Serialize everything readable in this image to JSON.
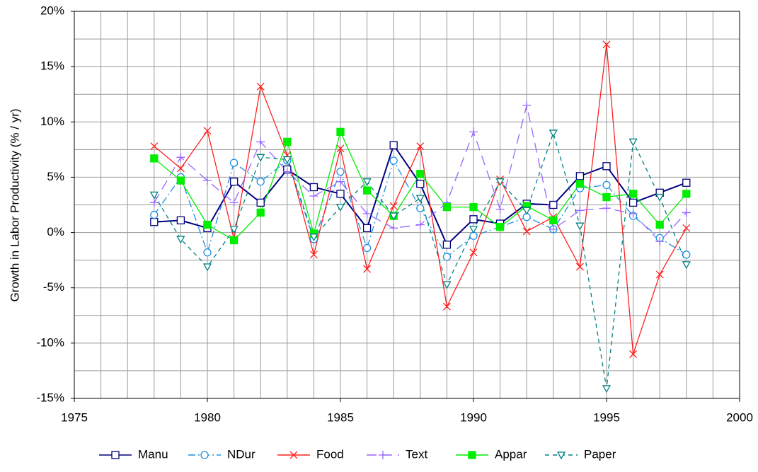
{
  "chart_data": {
    "type": "line",
    "y_label": "Growth in Labor Productivity (% / yr)",
    "x": [
      1978,
      1979,
      1980,
      1981,
      1982,
      1983,
      1984,
      1985,
      1986,
      1987,
      1988,
      1989,
      1990,
      1991,
      1992,
      1993,
      1994,
      1995,
      1996,
      1997,
      1998
    ],
    "xlim": [
      1975,
      2000
    ],
    "xticks": [
      1975,
      1980,
      1985,
      1990,
      1995,
      2000
    ],
    "xgrid": [
      1975,
      1976,
      1977,
      1978,
      1979,
      1980,
      1981,
      1982,
      1983,
      1984,
      1985,
      1986,
      1987,
      1988,
      1989,
      1990,
      1991,
      1992,
      1993,
      1994,
      1995,
      1996,
      1997,
      1998,
      1999,
      2000
    ],
    "ylim": [
      -15,
      20
    ],
    "yticks": [
      {
        "value": -15,
        "label": "-15%"
      },
      {
        "value": -10,
        "label": "-10%"
      },
      {
        "value": -5,
        "label": "-5%"
      },
      {
        "value": 0,
        "label": "0%"
      },
      {
        "value": 5,
        "label": "5%"
      },
      {
        "value": 10,
        "label": "10%"
      },
      {
        "value": 15,
        "label": "15%"
      },
      {
        "value": 20,
        "label": "20%"
      }
    ],
    "ygrid": [
      -15,
      -12.5,
      -10,
      -7.5,
      -5,
      -2.5,
      0,
      2.5,
      5,
      7.5,
      10,
      12.5,
      15,
      17.5,
      20
    ],
    "grid": true,
    "legend": "bottom",
    "series": [
      {
        "name": "Manu",
        "color": "#000080",
        "marker": "square",
        "dash": "solid",
        "values": [
          0.95,
          1.1,
          0.4,
          4.6,
          2.7,
          5.7,
          4.1,
          3.5,
          0.4,
          7.9,
          4.4,
          -1.1,
          1.2,
          0.8,
          2.6,
          2.5,
          5.1,
          6.0,
          2.7,
          3.6,
          4.5
        ]
      },
      {
        "name": "NDur",
        "color": "#1e8fe0",
        "marker": "circle",
        "dash": "dashdot",
        "values": [
          1.6,
          5.0,
          -1.8,
          6.3,
          4.6,
          6.5,
          -0.6,
          5.5,
          -1.4,
          6.5,
          2.2,
          -2.2,
          -0.3,
          0.5,
          1.4,
          0.3,
          4.0,
          4.3,
          1.5,
          -0.5,
          -2.0
        ]
      },
      {
        "name": "Food",
        "color": "#ff2020",
        "marker": "x",
        "dash": "solid",
        "values": [
          7.8,
          5.8,
          9.2,
          -0.6,
          13.2,
          7.0,
          -2.0,
          7.6,
          -3.3,
          2.4,
          7.8,
          -6.7,
          -1.8,
          4.8,
          0.1,
          1.4,
          -3.1,
          17.0,
          -11.0,
          -3.8,
          0.4
        ]
      },
      {
        "name": "Text",
        "color": "#9966ff",
        "marker": "plus",
        "dash": "longdash",
        "values": [
          2.7,
          6.8,
          4.7,
          2.7,
          8.2,
          5.5,
          3.3,
          4.6,
          1.7,
          0.4,
          0.7,
          2.7,
          9.1,
          2.1,
          11.5,
          0.3,
          2.0,
          2.2,
          1.7,
          -0.8,
          1.8
        ]
      },
      {
        "name": "Appar",
        "color": "#00ee00",
        "marker": "filled-square",
        "dash": "solid",
        "values": [
          6.7,
          4.7,
          0.7,
          -0.7,
          1.8,
          8.2,
          -0.1,
          9.1,
          3.8,
          1.5,
          5.3,
          2.3,
          2.3,
          0.5,
          2.4,
          1.1,
          4.4,
          3.2,
          3.5,
          0.7,
          3.5
        ]
      },
      {
        "name": "Paper",
        "color": "#008080",
        "marker": "triangle-down",
        "dash": "dash",
        "values": [
          3.4,
          -0.6,
          -3.1,
          0.3,
          6.8,
          6.6,
          -0.4,
          2.3,
          4.6,
          1.5,
          3.1,
          -4.7,
          0.3,
          4.6,
          2.0,
          9.0,
          0.6,
          -14.1,
          8.2,
          3.2,
          -2.9
        ]
      }
    ]
  }
}
